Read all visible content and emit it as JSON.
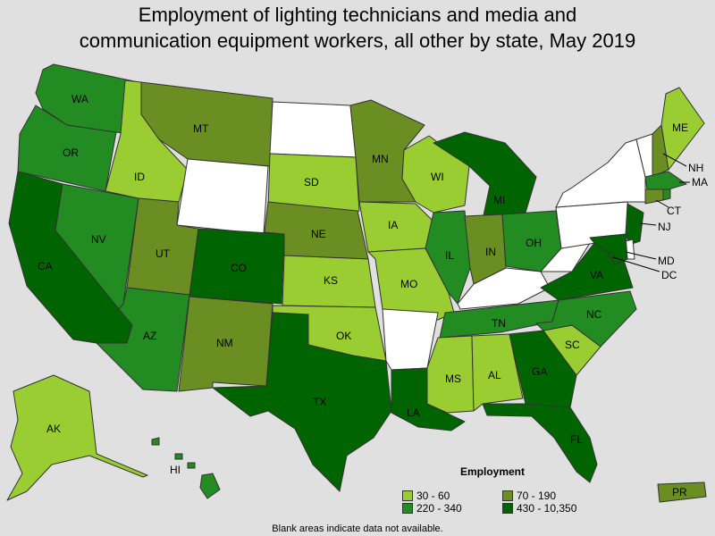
{
  "title_lines": [
    "Employment of lighting technicians and media and",
    "communication equipment workers, all other by state, May 2019"
  ],
  "colors": {
    "c1": "#9acd32",
    "c2": "#6b8e23",
    "c3": "#228b22",
    "c4": "#006400",
    "none": "#ffffff"
  },
  "legend": {
    "title": "Employment",
    "items": [
      {
        "label": "30 - 60",
        "class": "c1"
      },
      {
        "label": "70 - 190",
        "class": "c2"
      },
      {
        "label": "220 - 340",
        "class": "c3"
      },
      {
        "label": "430 - 10,350",
        "class": "c4"
      }
    ]
  },
  "states": {
    "WA": "c3",
    "OR": "c3",
    "CA": "c4",
    "NV": "c3",
    "ID": "c1",
    "MT": "c2",
    "WY": "none",
    "UT": "c2",
    "AZ": "c3",
    "CO": "c4",
    "NM": "c2",
    "ND": "none",
    "SD": "c1",
    "NE": "c2",
    "KS": "c1",
    "OK": "c1",
    "TX": "c4",
    "MN": "c2",
    "IA": "c1",
    "MO": "c1",
    "AR": "none",
    "LA": "c4",
    "WI": "c1",
    "IL": "c3",
    "MI": "c4",
    "IN": "c2",
    "OH": "c3",
    "KY": "none",
    "TN": "c3",
    "MS": "c1",
    "AL": "c1",
    "GA": "c4",
    "FL": "c4",
    "SC": "c1",
    "NC": "c3",
    "VA": "c4",
    "WV": "none",
    "PA": "none",
    "NY": "none",
    "VT": "none",
    "NH": "c2",
    "ME": "c1",
    "MA": "c3",
    "CT": "c2",
    "RI": "c3",
    "NJ": "c4",
    "DE": "none",
    "MD": "c4",
    "DC": "c4",
    "AK": "c1",
    "HI": "c3",
    "PR": "c2"
  },
  "state_labels": [
    "WA",
    "OR",
    "CA",
    "NV",
    "ID",
    "MT",
    "UT",
    "AZ",
    "CO",
    "NM",
    "SD",
    "NE",
    "KS",
    "OK",
    "TX",
    "MN",
    "IA",
    "MO",
    "LA",
    "WI",
    "IL",
    "MI",
    "IN",
    "OH",
    "TN",
    "MS",
    "AL",
    "GA",
    "FL",
    "SC",
    "NC",
    "VA",
    "ME",
    "AK",
    "HI",
    "PR"
  ],
  "callout_labels": [
    "NH",
    "MA",
    "CT",
    "NJ",
    "MD",
    "DC"
  ],
  "footnote": "Blank areas indicate data not available."
}
